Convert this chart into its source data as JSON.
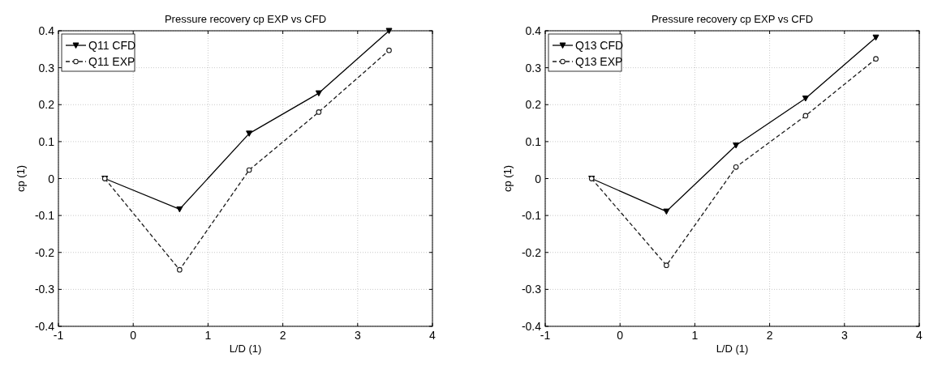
{
  "chart_data": [
    {
      "type": "line",
      "title": "Pressure recovery cp EXP vs CFD",
      "xlabel": "L/D (1)",
      "ylabel": "cp (1)",
      "x": [
        -0.38,
        0.62,
        1.55,
        2.48,
        3.42
      ],
      "xlim": [
        -1,
        4
      ],
      "xticks": [
        -1,
        0,
        1,
        2,
        3,
        4
      ],
      "ylim": [
        -0.4,
        0.4
      ],
      "yticks": [
        -0.4,
        -0.3,
        -0.2,
        -0.1,
        0,
        0.1,
        0.2,
        0.3,
        0.4
      ],
      "grid": true,
      "legend": "top left",
      "series": [
        {
          "name": "Q11 CFD",
          "color": "#000000",
          "marker": "triangle",
          "line_style": "solid",
          "values": [
            0,
            -0.083,
            0.122,
            0.231,
            0.4
          ]
        },
        {
          "name": "Q11 EXP",
          "color": "#1a1a1a",
          "marker": "circle",
          "line_style": "dashed",
          "values": [
            0,
            -0.247,
            0.023,
            0.18,
            0.347
          ]
        }
      ]
    },
    {
      "type": "line",
      "title": "Pressure recovery cp EXP vs CFD",
      "xlabel": "L/D (1)",
      "ylabel": "cp (1)",
      "x": [
        -0.38,
        0.62,
        1.55,
        2.48,
        3.42
      ],
      "xlim": [
        -1,
        4
      ],
      "xticks": [
        -1,
        0,
        1,
        2,
        3,
        4
      ],
      "ylim": [
        -0.4,
        0.4
      ],
      "yticks": [
        -0.4,
        -0.3,
        -0.2,
        -0.1,
        0,
        0.1,
        0.2,
        0.3,
        0.4
      ],
      "grid": true,
      "legend": "top left",
      "series": [
        {
          "name": "Q13 CFD",
          "color": "#000000",
          "marker": "triangle",
          "line_style": "solid",
          "values": [
            0,
            -0.089,
            0.09,
            0.217,
            0.382
          ]
        },
        {
          "name": "Q13 EXP",
          "color": "#1a1a1a",
          "marker": "circle",
          "line_style": "dashed",
          "values": [
            0,
            -0.235,
            0.031,
            0.17,
            0.324
          ]
        }
      ]
    }
  ]
}
